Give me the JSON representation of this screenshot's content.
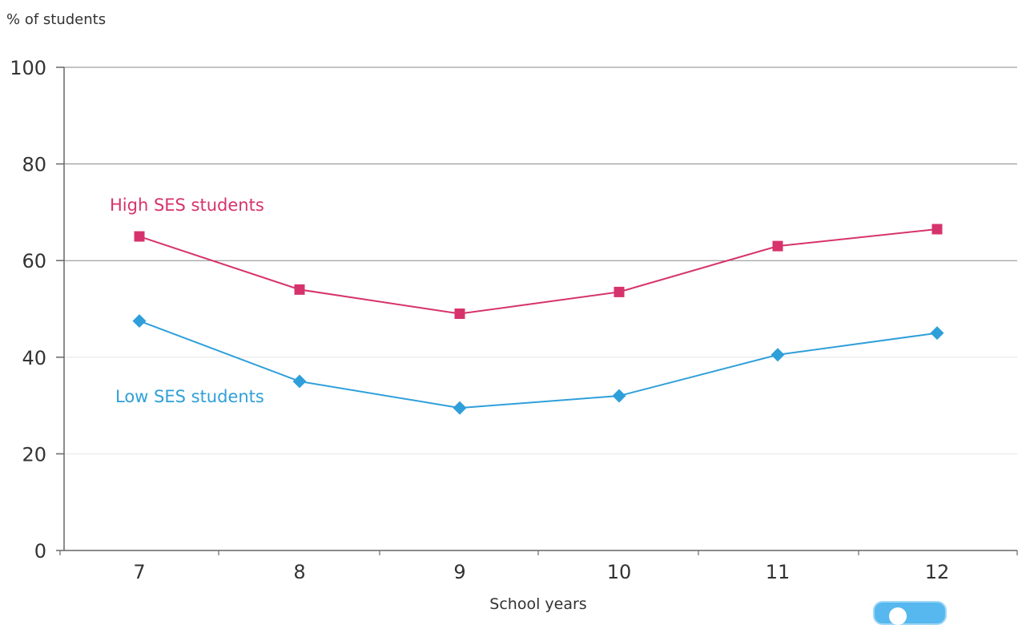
{
  "chart_data": {
    "type": "line",
    "ylabel": "% of students",
    "xlabel": "School years",
    "categories": [
      "7",
      "8",
      "9",
      "10",
      "11",
      "12"
    ],
    "ylim": [
      0,
      100
    ],
    "yticks": [
      "0",
      "20",
      "40",
      "60",
      "80",
      "100"
    ],
    "grid": true,
    "series": [
      {
        "name": "High SES students",
        "values": [
          65,
          54,
          49,
          53.5,
          63,
          66.5
        ],
        "color": "#d6336c",
        "marker": "square"
      },
      {
        "name": "Low SES students",
        "values": [
          47.5,
          35,
          29.5,
          32,
          40.5,
          45
        ],
        "color": "#2f9fda",
        "marker": "diamond"
      }
    ]
  },
  "colors": {
    "axis": "#666666",
    "grid": "#e6e6e6",
    "text": "#333333",
    "badge": "#56b8ee"
  },
  "icons": {
    "help_badge": "help-bubble-icon"
  }
}
